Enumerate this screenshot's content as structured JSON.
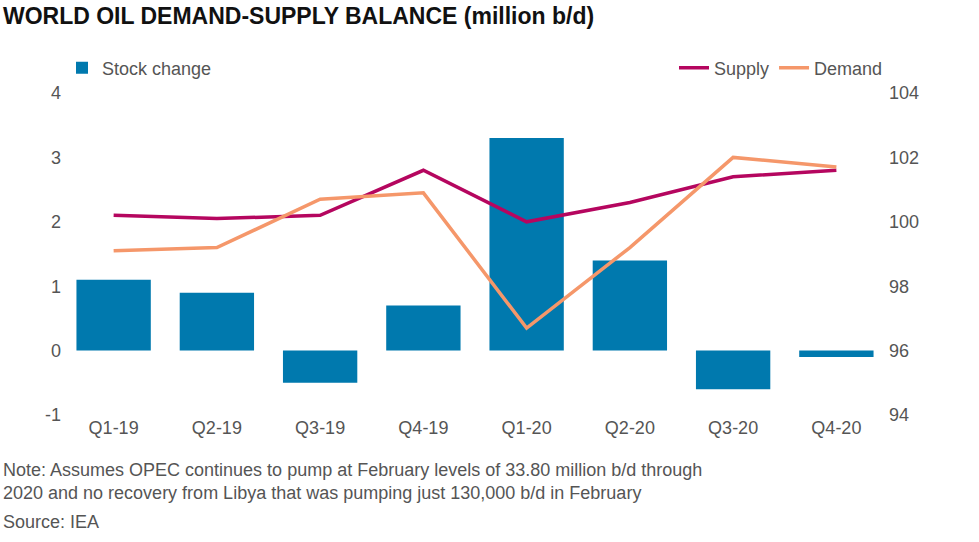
{
  "chart_data": {
    "type": "bar",
    "title": "WORLD OIL DEMAND-SUPPLY BALANCE (million b/d)",
    "annotations": [
      "Note: Assumes OPEC continues to pump at February levels of 33.80 million b/d through 2020 and no recovery from Libya that was pumping just 130,000 b/d in February",
      "Source: IEA"
    ],
    "categories": [
      "Q1-19",
      "Q2-19",
      "Q3-19",
      "Q4-19",
      "Q1-20",
      "Q2-20",
      "Q3-20",
      "Q4-20"
    ],
    "series": [
      {
        "name": "Stock change",
        "type": "bar",
        "color": "#0079ae",
        "values": [
          1.1,
          0.9,
          -0.5,
          0.7,
          3.3,
          1.4,
          -0.6,
          -0.1
        ]
      },
      {
        "name": "Supply",
        "type": "line",
        "color": "#b5065f",
        "axis": "y2",
        "values": [
          100.2,
          100.1,
          100.2,
          101.6,
          100.0,
          100.6,
          101.4,
          101.6
        ]
      },
      {
        "name": "Demand",
        "type": "line",
        "color": "#f5976a",
        "axis": "y2",
        "values": [
          99.1,
          99.2,
          100.7,
          100.9,
          96.7,
          99.2,
          102.0,
          101.7
        ]
      }
    ],
    "ylim": [
      -1,
      4
    ],
    "yticks": [
      -1,
      0,
      1,
      2,
      3,
      4
    ],
    "y2lim": [
      94,
      104
    ],
    "y2ticks": [
      94,
      96,
      98,
      100,
      102,
      104
    ],
    "grid": false
  }
}
